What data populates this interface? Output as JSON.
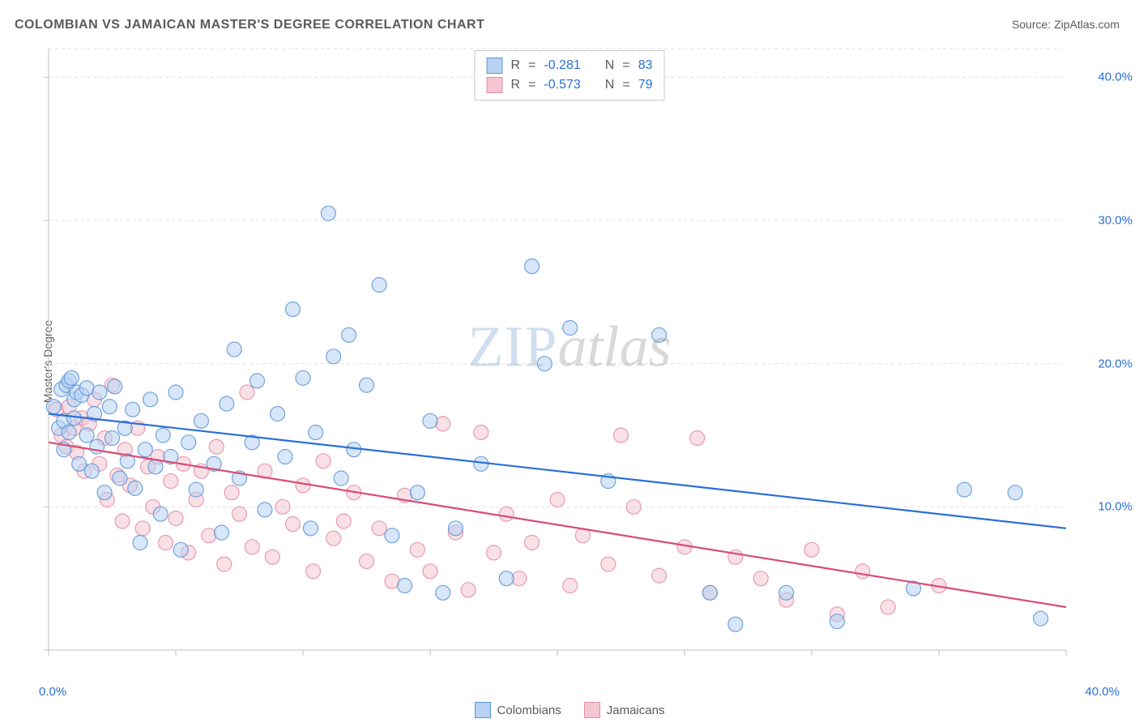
{
  "title": "COLOMBIAN VS JAMAICAN MASTER'S DEGREE CORRELATION CHART",
  "source_label": "Source:",
  "source_value": "ZipAtlas.com",
  "ylabel": "Master's Degree",
  "watermark_a": "ZIP",
  "watermark_b": "atlas",
  "chart": {
    "type": "scatter-with-trend",
    "background_color": "#ffffff",
    "grid_color": "#e0e0e0",
    "axis_color": "#bfbfbf",
    "xlim": [
      0,
      40
    ],
    "ylim": [
      0,
      42
    ],
    "xticks_major": [
      0,
      5,
      10,
      15,
      20,
      25,
      30,
      35,
      40
    ],
    "yticks_grid": [
      10,
      20,
      30,
      40
    ],
    "xtick_label_left": "0.0%",
    "xtick_label_right": "40.0%",
    "ytick_labels": {
      "10": "10.0%",
      "20": "20.0%",
      "30": "30.0%",
      "40": "40.0%"
    },
    "marker_radius": 9,
    "marker_opacity": 0.55,
    "marker_stroke_opacity": 0.85,
    "trend_width": 2.2,
    "series": [
      {
        "name": "Colombians",
        "color_fill": "#b7d2f3",
        "color_stroke": "#5a94d8",
        "trend_color": "#2a6fd6",
        "R": "-0.281",
        "N": "83",
        "trend": {
          "x1": 0,
          "y1": 16.5,
          "x2": 40,
          "y2": 8.5
        },
        "points": [
          [
            0.2,
            17.0
          ],
          [
            0.4,
            15.5
          ],
          [
            0.5,
            18.2
          ],
          [
            0.6,
            16.0
          ],
          [
            0.6,
            14.0
          ],
          [
            0.7,
            18.5
          ],
          [
            0.8,
            18.8
          ],
          [
            0.8,
            15.2
          ],
          [
            0.9,
            19.0
          ],
          [
            1.0,
            17.5
          ],
          [
            1.0,
            16.2
          ],
          [
            1.1,
            18.0
          ],
          [
            1.2,
            13.0
          ],
          [
            1.3,
            17.8
          ],
          [
            1.5,
            15.0
          ],
          [
            1.5,
            18.3
          ],
          [
            1.7,
            12.5
          ],
          [
            1.8,
            16.5
          ],
          [
            1.9,
            14.2
          ],
          [
            2.0,
            18.0
          ],
          [
            2.2,
            11.0
          ],
          [
            2.4,
            17.0
          ],
          [
            2.5,
            14.8
          ],
          [
            2.6,
            18.4
          ],
          [
            2.8,
            12.0
          ],
          [
            3.0,
            15.5
          ],
          [
            3.1,
            13.2
          ],
          [
            3.3,
            16.8
          ],
          [
            3.4,
            11.3
          ],
          [
            3.6,
            7.5
          ],
          [
            3.8,
            14.0
          ],
          [
            4.0,
            17.5
          ],
          [
            4.2,
            12.8
          ],
          [
            4.4,
            9.5
          ],
          [
            4.5,
            15.0
          ],
          [
            4.8,
            13.5
          ],
          [
            5.0,
            18.0
          ],
          [
            5.2,
            7.0
          ],
          [
            5.5,
            14.5
          ],
          [
            5.8,
            11.2
          ],
          [
            6.0,
            16.0
          ],
          [
            6.5,
            13.0
          ],
          [
            6.8,
            8.2
          ],
          [
            7.0,
            17.2
          ],
          [
            7.3,
            21.0
          ],
          [
            7.5,
            12.0
          ],
          [
            8.0,
            14.5
          ],
          [
            8.2,
            18.8
          ],
          [
            8.5,
            9.8
          ],
          [
            9.0,
            16.5
          ],
          [
            9.3,
            13.5
          ],
          [
            9.6,
            23.8
          ],
          [
            10.0,
            19.0
          ],
          [
            10.3,
            8.5
          ],
          [
            10.5,
            15.2
          ],
          [
            11.0,
            30.5
          ],
          [
            11.2,
            20.5
          ],
          [
            11.5,
            12.0
          ],
          [
            11.8,
            22.0
          ],
          [
            12.0,
            14.0
          ],
          [
            12.5,
            18.5
          ],
          [
            13.0,
            25.5
          ],
          [
            13.5,
            8.0
          ],
          [
            14.0,
            4.5
          ],
          [
            14.5,
            11.0
          ],
          [
            15.0,
            16.0
          ],
          [
            15.5,
            4.0
          ],
          [
            16.0,
            8.5
          ],
          [
            17.0,
            13.0
          ],
          [
            18.0,
            5.0
          ],
          [
            19.0,
            26.8
          ],
          [
            19.5,
            20.0
          ],
          [
            20.5,
            22.5
          ],
          [
            22.0,
            11.8
          ],
          [
            24.0,
            22.0
          ],
          [
            26.0,
            4.0
          ],
          [
            27.0,
            1.8
          ],
          [
            29.0,
            4.0
          ],
          [
            31.0,
            2.0
          ],
          [
            34.0,
            4.3
          ],
          [
            36.0,
            11.2
          ],
          [
            38.0,
            11.0
          ],
          [
            39.0,
            2.2
          ]
        ]
      },
      {
        "name": "Jamaicans",
        "color_fill": "#f4c6d1",
        "color_stroke": "#e38ca3",
        "trend_color": "#d84b75",
        "R": "-0.573",
        "N": "79",
        "trend": {
          "x1": 0,
          "y1": 14.5,
          "x2": 40,
          "y2": 3.0
        },
        "points": [
          [
            0.3,
            16.8
          ],
          [
            0.5,
            15.0
          ],
          [
            0.7,
            14.2
          ],
          [
            0.8,
            17.0
          ],
          [
            1.0,
            15.5
          ],
          [
            1.1,
            13.8
          ],
          [
            1.3,
            16.2
          ],
          [
            1.4,
            12.5
          ],
          [
            1.6,
            15.8
          ],
          [
            1.8,
            17.5
          ],
          [
            2.0,
            13.0
          ],
          [
            2.2,
            14.8
          ],
          [
            2.3,
            10.5
          ],
          [
            2.5,
            18.5
          ],
          [
            2.7,
            12.2
          ],
          [
            2.9,
            9.0
          ],
          [
            3.0,
            14.0
          ],
          [
            3.2,
            11.5
          ],
          [
            3.5,
            15.5
          ],
          [
            3.7,
            8.5
          ],
          [
            3.9,
            12.8
          ],
          [
            4.1,
            10.0
          ],
          [
            4.3,
            13.5
          ],
          [
            4.6,
            7.5
          ],
          [
            4.8,
            11.8
          ],
          [
            5.0,
            9.2
          ],
          [
            5.3,
            13.0
          ],
          [
            5.5,
            6.8
          ],
          [
            5.8,
            10.5
          ],
          [
            6.0,
            12.5
          ],
          [
            6.3,
            8.0
          ],
          [
            6.6,
            14.2
          ],
          [
            6.9,
            6.0
          ],
          [
            7.2,
            11.0
          ],
          [
            7.5,
            9.5
          ],
          [
            7.8,
            18.0
          ],
          [
            8.0,
            7.2
          ],
          [
            8.5,
            12.5
          ],
          [
            8.8,
            6.5
          ],
          [
            9.2,
            10.0
          ],
          [
            9.6,
            8.8
          ],
          [
            10.0,
            11.5
          ],
          [
            10.4,
            5.5
          ],
          [
            10.8,
            13.2
          ],
          [
            11.2,
            7.8
          ],
          [
            11.6,
            9.0
          ],
          [
            12.0,
            11.0
          ],
          [
            12.5,
            6.2
          ],
          [
            13.0,
            8.5
          ],
          [
            13.5,
            4.8
          ],
          [
            14.0,
            10.8
          ],
          [
            14.5,
            7.0
          ],
          [
            15.0,
            5.5
          ],
          [
            15.5,
            15.8
          ],
          [
            16.0,
            8.2
          ],
          [
            16.5,
            4.2
          ],
          [
            17.0,
            15.2
          ],
          [
            17.5,
            6.8
          ],
          [
            18.0,
            9.5
          ],
          [
            18.5,
            5.0
          ],
          [
            19.0,
            7.5
          ],
          [
            20.0,
            10.5
          ],
          [
            20.5,
            4.5
          ],
          [
            21.0,
            8.0
          ],
          [
            22.0,
            6.0
          ],
          [
            22.5,
            15.0
          ],
          [
            23.0,
            10.0
          ],
          [
            24.0,
            5.2
          ],
          [
            25.0,
            7.2
          ],
          [
            25.5,
            14.8
          ],
          [
            26.0,
            4.0
          ],
          [
            27.0,
            6.5
          ],
          [
            28.0,
            5.0
          ],
          [
            29.0,
            3.5
          ],
          [
            30.0,
            7.0
          ],
          [
            31.0,
            2.5
          ],
          [
            32.0,
            5.5
          ],
          [
            33.0,
            3.0
          ],
          [
            35.0,
            4.5
          ]
        ]
      }
    ]
  },
  "corr_labels": {
    "R": "R",
    "eq": "=",
    "N": "N"
  },
  "legend_bottom": [
    {
      "label": "Colombians"
    },
    {
      "label": "Jamaicans"
    }
  ]
}
